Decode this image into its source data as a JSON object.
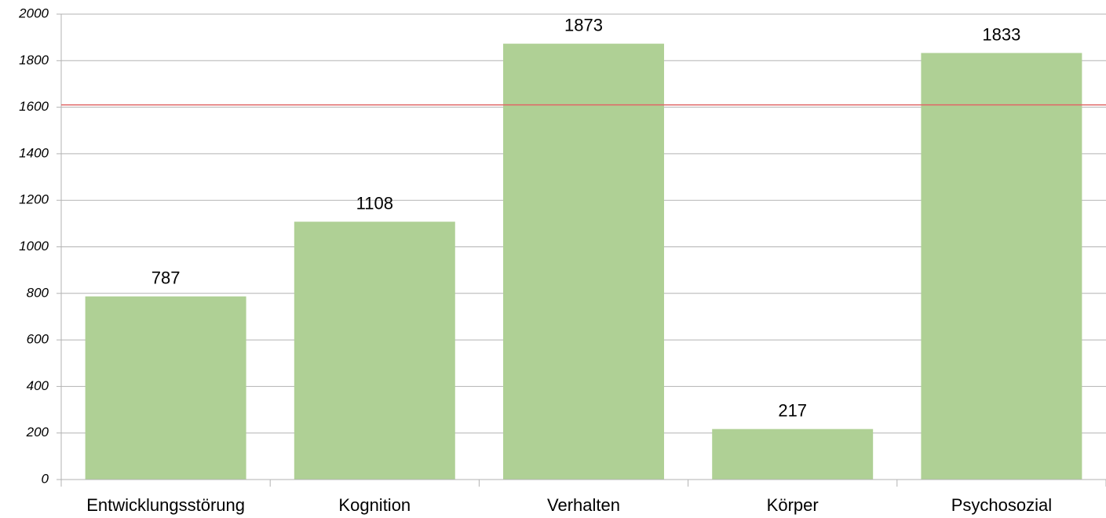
{
  "chart_data": {
    "type": "bar",
    "categories": [
      "Entwicklungsstörung",
      "Kognition",
      "Verhalten",
      "Körper",
      "Psychosozial"
    ],
    "values": [
      787,
      1108,
      1873,
      217,
      1833
    ],
    "color": "#afd095",
    "ylim": [
      0,
      2000
    ],
    "yticks": [
      0,
      200,
      400,
      600,
      800,
      1000,
      1200,
      1400,
      1600,
      1800,
      2000
    ],
    "grid": true,
    "reference_line": {
      "value": 1610,
      "color": "#e06666"
    }
  }
}
